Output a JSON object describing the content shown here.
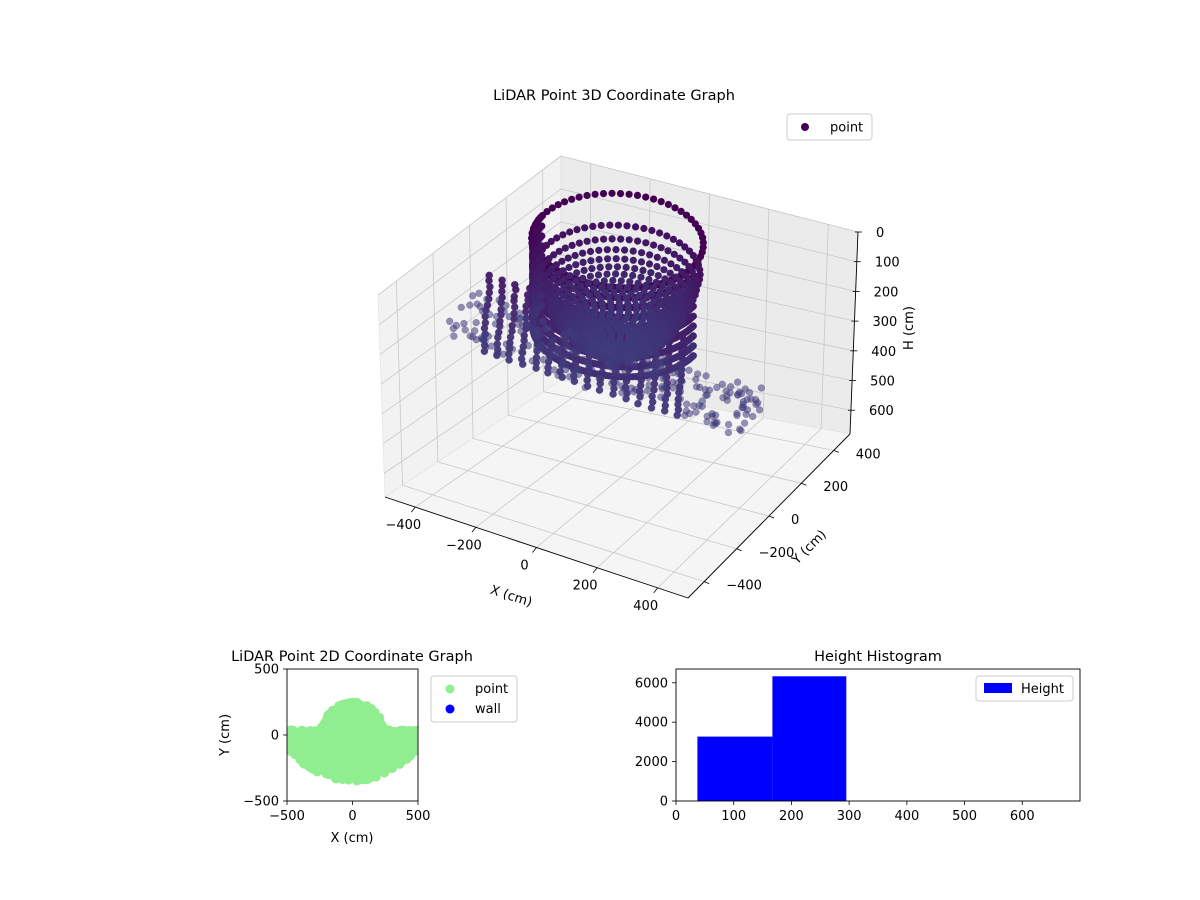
{
  "chart_data": [
    {
      "type": "scatter3d",
      "title": "LiDAR Point 3D Coordinate Graph",
      "xlabel": "X (cm)",
      "ylabel": "Y (cm)",
      "zlabel": "H (cm)",
      "xlim": [
        -500,
        500
      ],
      "ylim": [
        -500,
        500
      ],
      "zlim": [
        0,
        680
      ],
      "z_inverted": true,
      "x_ticks": [
        -400,
        -200,
        0,
        200,
        400
      ],
      "y_ticks": [
        -400,
        -200,
        0,
        200,
        400
      ],
      "z_ticks": [
        0,
        100,
        200,
        300,
        400,
        500,
        600
      ],
      "legend": {
        "placement": "top-right",
        "entries": [
          "point"
        ]
      },
      "colormap": "viridis",
      "colors": {
        "dark": "#440154",
        "mid": "#3b528b"
      },
      "grid": true,
      "shape": {
        "dome": {
          "center": [
            0,
            0
          ],
          "radius": 250,
          "h_top": 0,
          "h_bottom": 330
        },
        "ribs": {
          "count": 16,
          "x_range": [
            -330,
            310
          ],
          "h_top": 120,
          "h_bottom": 330
        },
        "side_points": {
          "x_range": [
            -500,
            500
          ],
          "y_range": [
            -180,
            60
          ],
          "h_range": [
            330,
            360
          ]
        }
      }
    },
    {
      "type": "scatter",
      "title": "LiDAR Point 2D Coordinate Graph",
      "xlabel": "X (cm)",
      "ylabel": "Y (cm)",
      "xlim": [
        -500,
        500
      ],
      "ylim": [
        -500,
        500
      ],
      "x_ticks": [
        -500,
        0,
        500
      ],
      "y_ticks": [
        -500,
        0,
        500
      ],
      "legend": {
        "placement": "outside-right",
        "entries": [
          "point",
          "wall"
        ]
      },
      "series": [
        {
          "name": "point",
          "color": "#90ee90",
          "region": {
            "dome": {
              "center": [
                0,
                0
              ],
              "radius": 250
            },
            "band": {
              "x": [
                -500,
                500
              ],
              "y": [
                -350,
                40
              ]
            }
          }
        },
        {
          "name": "wall",
          "color": "#0000ff",
          "values": []
        }
      ]
    },
    {
      "type": "histogram",
      "title": "Height Histogram",
      "xlim": [
        0,
        700
      ],
      "ylim": [
        0,
        6700
      ],
      "x_ticks": [
        0,
        100,
        200,
        300,
        400,
        500,
        600
      ],
      "y_ticks": [
        0,
        2000,
        4000,
        6000
      ],
      "legend": {
        "placement": "top-right",
        "entries": [
          "Height"
        ]
      },
      "color": "#0000ff",
      "bins": [
        {
          "start": 37,
          "end": 167,
          "count": 3270
        },
        {
          "start": 167,
          "end": 295,
          "count": 6330
        },
        {
          "start": 295,
          "end": 423,
          "count": 0
        },
        {
          "start": 423,
          "end": 551,
          "count": 0
        },
        {
          "start": 551,
          "end": 679,
          "count": 0
        }
      ]
    }
  ]
}
